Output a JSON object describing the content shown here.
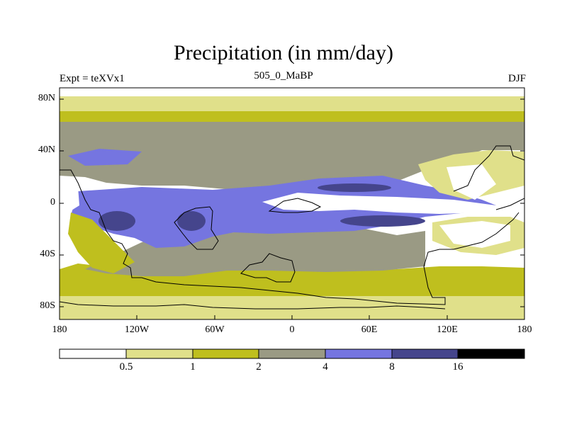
{
  "title": "Precipitation (in mm/day)",
  "left_label": "Expt = teXVx1",
  "center_label": "505_0_MaBP",
  "right_label": "DJF",
  "lat_ticks": [
    "80N",
    "40N",
    "0",
    "40S",
    "80S"
  ],
  "lon_ticks": [
    "180",
    "120W",
    "60W",
    "0",
    "60E",
    "120E",
    "180"
  ],
  "colorbar_labels": [
    "0.5",
    "1",
    "2",
    "4",
    "8",
    "16"
  ],
  "colors": {
    "c0": "#ffffff",
    "c1": "#e0e08a",
    "c2": "#bfbf1e",
    "c3": "#9a9a84",
    "c4": "#7575e0",
    "c5": "#45458c",
    "c6": "#000000"
  },
  "chart_data": {
    "type": "heatmap",
    "title": "Precipitation (in mm/day)",
    "variable": "Precipitation",
    "units": "mm/day",
    "experiment": "teXVx1",
    "time": "505_0_MaBP",
    "season": "DJF",
    "x_range": [
      -180,
      180
    ],
    "y_range": [
      -90,
      90
    ],
    "contour_levels": [
      0.5,
      1,
      2,
      4,
      8,
      16
    ]
  }
}
